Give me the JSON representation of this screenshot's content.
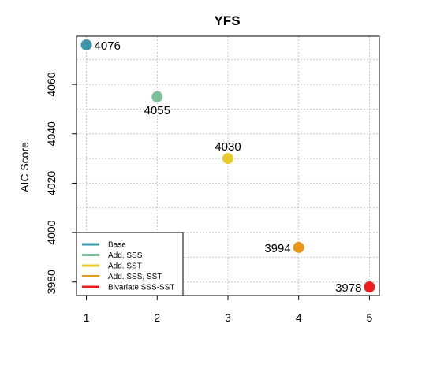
{
  "chart_data": {
    "type": "scatter",
    "title": "YFS",
    "xlabel": "",
    "ylabel": "AIC Score",
    "xlim": [
      0.86,
      5.14
    ],
    "ylim": [
      3974.5,
      4079.5
    ],
    "x_ticks": [
      1,
      2,
      3,
      4,
      5
    ],
    "y_ticks": [
      3980,
      4000,
      4020,
      4040,
      4060
    ],
    "y_ticks_minor": [
      3990,
      4010,
      4030,
      4050,
      4070
    ],
    "grid": true,
    "legend_position": "bottom-left",
    "points": [
      {
        "x": 1,
        "y": 4076,
        "label": "4076",
        "color": "#3e96a8",
        "label_side": "right"
      },
      {
        "x": 2,
        "y": 4055,
        "label": "4055",
        "color": "#7dbf99",
        "label_side": "below"
      },
      {
        "x": 3,
        "y": 4030,
        "label": "4030",
        "color": "#e8cc2e",
        "label_side": "above"
      },
      {
        "x": 4,
        "y": 3994,
        "label": "3994",
        "color": "#e8961a",
        "label_side": "left"
      },
      {
        "x": 5,
        "y": 3978,
        "label": "3978",
        "color": "#ee1c1c",
        "label_side": "left"
      }
    ],
    "legend": [
      {
        "name": "Base",
        "color": "#3e96a8"
      },
      {
        "name": "Add. SSS",
        "color": "#7dbf99"
      },
      {
        "name": "Add. SST",
        "color": "#e8cc2e"
      },
      {
        "name": "Add. SSS, SST",
        "color": "#e8961a"
      },
      {
        "name": "Bivariate SSS-SST",
        "color": "#ee1c1c"
      }
    ]
  }
}
